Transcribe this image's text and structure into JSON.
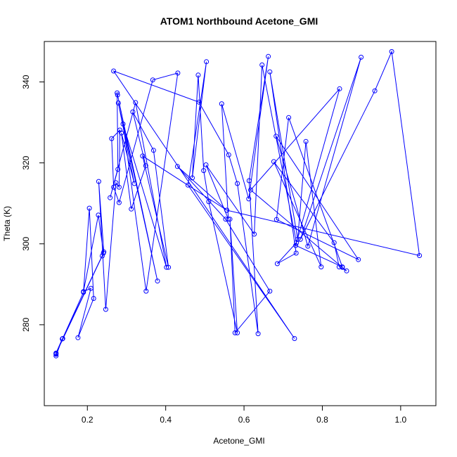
{
  "chart_data": {
    "type": "line",
    "title": "ATOM1 Northbound Acetone_GMI",
    "xlabel": "Acetone_GMI",
    "ylabel": "Theta (K)",
    "xlim": [
      0.09,
      1.09
    ],
    "ylim": [
      260,
      350
    ],
    "xticks": [
      "0.2",
      "0.4",
      "0.6",
      "0.8",
      "1.0"
    ],
    "yticks": [
      "280",
      "300",
      "320",
      "340"
    ],
    "series_color": "#0000ff",
    "grid": false,
    "legend": "none",
    "series": [
      {
        "marker": "open-circle",
        "x": [
          0.12,
          0.12,
          0.136,
          0.12,
          0.19,
          0.205,
          0.216,
          0.176,
          0.209,
          0.19,
          0.228,
          0.241,
          0.137,
          0.12,
          0.238,
          0.242,
          0.229,
          0.247,
          0.273,
          0.281,
          0.283,
          0.262,
          0.267,
          0.281,
          0.367,
          0.431,
          0.35,
          0.291,
          0.402,
          0.323,
          0.258,
          0.278,
          0.276,
          0.277,
          0.379,
          0.279,
          0.32,
          0.287,
          0.312,
          0.349,
          0.316,
          0.369,
          0.407,
          0.341,
          0.556,
          0.43,
          0.553,
          0.666,
          0.577,
          0.564,
          0.583,
          0.51,
          0.497,
          0.483,
          0.468,
          0.504,
          0.457,
          0.729,
          0.267,
          0.485,
          0.561,
          0.583,
          0.636,
          0.613,
          0.662,
          0.612,
          0.543,
          0.56,
          0.503,
          0.626,
          0.646,
          0.734,
          0.685,
          0.733,
          0.666,
          0.737,
          0.758,
          0.797,
          0.676,
          0.83,
          0.843,
          0.862,
          0.851,
          0.617,
          0.844,
          0.732,
          0.851,
          0.714,
          0.683,
          0.892,
          0.682,
          0.763,
          0.899,
          0.744,
          0.934,
          0.977,
          1.048,
          0.556
        ]
      }
    ],
    "y": [
      272.7,
      272.3,
      276.5,
      273.0,
      288.0,
      308.8,
      286.5,
      276.8,
      289.0,
      288.2,
      307.1,
      297.7,
      276.6,
      272.9,
      297.0,
      298.0,
      315.4,
      283.8,
      315.1,
      314.0,
      328.1,
      326.0,
      314.0,
      310.2,
      340.5,
      342.2,
      288.3,
      329.6,
      294.2,
      334.9,
      311.4,
      318.4,
      337.3,
      336.8,
      290.8,
      334.8,
      314.9,
      327.4,
      308.6,
      319.3,
      332.6,
      323.1,
      294.2,
      321.7,
      308.3,
      319.1,
      306.1,
      288.3,
      278.0,
      306.1,
      278.0,
      310.4,
      318.1,
      341.7,
      316.3,
      345.0,
      314.5,
      276.6,
      342.7,
      335.0,
      322.0,
      314.9,
      277.8,
      315.6,
      346.3,
      311.1,
      334.6,
      306.1,
      319.5,
      302.4,
      344.2,
      300.3,
      295.1,
      297.7,
      342.5,
      301.1,
      325.3,
      294.3,
      320.3,
      300.3,
      294.3,
      293.3,
      294.2,
      313.3,
      338.3,
      299.6,
      294.3,
      331.2,
      306.0,
      296.1,
      326.6,
      299.4,
      346.1,
      301.1,
      337.8,
      347.5,
      297.1,
      308.3
    ]
  }
}
